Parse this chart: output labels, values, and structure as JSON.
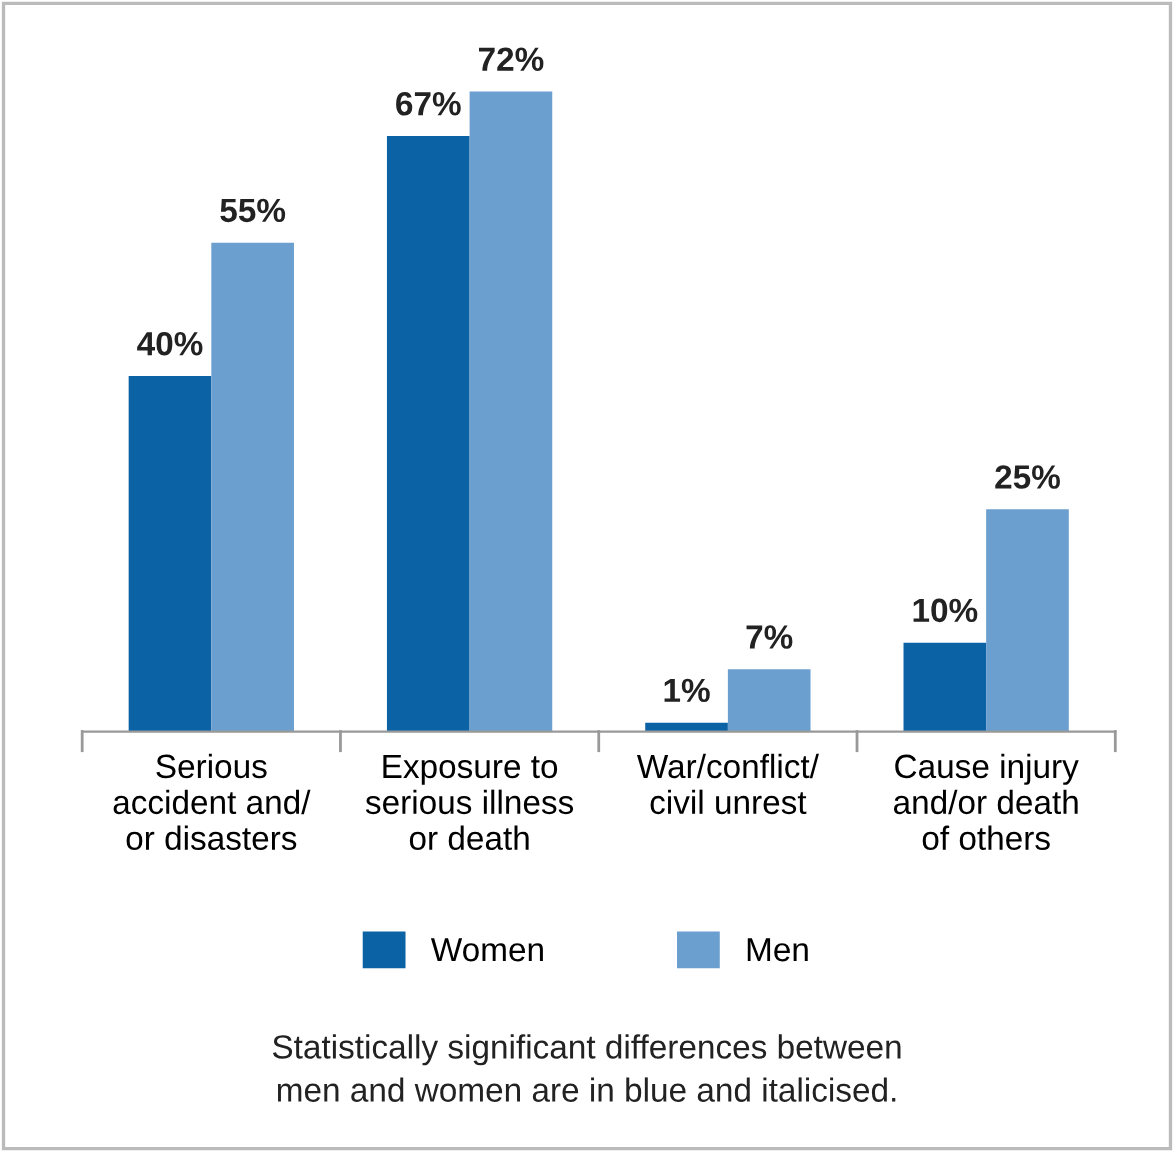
{
  "chart_data": {
    "type": "bar",
    "categories": [
      "Serious\naccident and/\nor disasters",
      "Exposure to\nserious illness\nor death",
      "War/conflict/\ncivil unrest",
      "Cause injury\nand/or death\nof others"
    ],
    "series": [
      {
        "name": "Women",
        "color": "#0b62a4",
        "values": [
          40,
          67,
          1,
          10
        ],
        "value_labels": [
          "40%",
          "67%",
          "1%",
          "10%"
        ]
      },
      {
        "name": "Men",
        "color": "#6b9fcf",
        "values": [
          55,
          72,
          7,
          25
        ],
        "value_labels": [
          "55%",
          "72%",
          "7%",
          "25%"
        ]
      }
    ],
    "legend": "bottom",
    "grid": false,
    "annotations": [
      "Statistically significant differences between\nmen and women are in blue and italicised."
    ]
  }
}
